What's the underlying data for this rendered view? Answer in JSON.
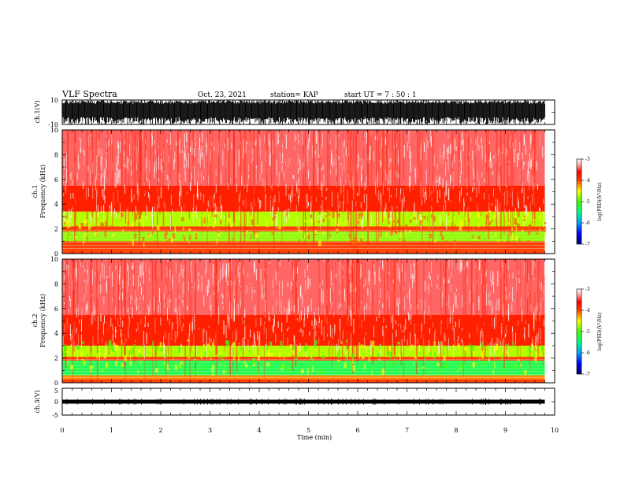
{
  "header": {
    "title": "VLF Spectra",
    "date": "Oct. 23, 2021",
    "station": "station= KAP",
    "start": "start  UT  =   7 : 50 : 1"
  },
  "chart_data": [
    {
      "type": "line",
      "panel": "ch1-waveform",
      "ylabel": "ch.1(V)",
      "ylim": [
        -10,
        10
      ],
      "y_ticks": [
        "10",
        "-10"
      ],
      "description_values": {
        "amplitude_range": [
          -10,
          10
        ]
      }
    },
    {
      "type": "heatmap",
      "panel": "ch1-spectrogram",
      "ylabel_line1": "ch.1",
      "ylabel_line2": "Frequency  (kHz)",
      "ylim": [
        0,
        10
      ],
      "y_ticks": [
        "0",
        "2",
        "4",
        "6",
        "8",
        "10"
      ],
      "bands_khz": [
        {
          "from": 0.0,
          "to": 0.3,
          "level": -4.0
        },
        {
          "from": 0.3,
          "to": 1.0,
          "level": -4.0
        },
        {
          "from": 1.0,
          "to": 1.8,
          "level": -4.8
        },
        {
          "from": 1.8,
          "to": 2.2,
          "level": -4.0
        },
        {
          "from": 2.2,
          "to": 3.4,
          "level": -4.7
        },
        {
          "from": 3.4,
          "to": 5.5,
          "level": -3.8
        },
        {
          "from": 5.5,
          "to": 10.0,
          "level": -3.4
        }
      ]
    },
    {
      "type": "heatmap",
      "panel": "ch2-spectrogram",
      "ylabel_line1": "ch.2",
      "ylabel_line2": "Frequency  (kHz)",
      "ylim": [
        0,
        10
      ],
      "y_ticks": [
        "0",
        "2",
        "4",
        "6",
        "8",
        "10"
      ],
      "bands_khz": [
        {
          "from": 0.0,
          "to": 0.3,
          "level": -4.0
        },
        {
          "from": 0.3,
          "to": 0.6,
          "level": -4.2
        },
        {
          "from": 0.6,
          "to": 1.8,
          "level": -5.3
        },
        {
          "from": 1.8,
          "to": 2.1,
          "level": -4.0
        },
        {
          "from": 2.1,
          "to": 3.0,
          "level": -4.7
        },
        {
          "from": 3.0,
          "to": 5.5,
          "level": -3.8
        },
        {
          "from": 5.5,
          "to": 10.0,
          "level": -3.4
        }
      ]
    },
    {
      "type": "line",
      "panel": "ch3-waveform",
      "ylabel": "ch.3(V)",
      "ylim": [
        -5,
        5
      ],
      "y_ticks": [
        "5",
        "0",
        "-5"
      ],
      "baseline_v": 0
    }
  ],
  "x_axis": {
    "xlabel": "Time  (min)",
    "xlim": [
      0,
      10
    ],
    "ticks": [
      "0",
      "1",
      "2",
      "3",
      "4",
      "5",
      "6",
      "7",
      "8",
      "9",
      "10"
    ],
    "data_end_min": 9.8
  },
  "colorbar": {
    "label": "log(PSD)(V²/Hz)",
    "range": [
      -7,
      -3
    ],
    "ticks": [
      "-3",
      "-4",
      "-5",
      "-6",
      "-7"
    ],
    "stops": [
      {
        "v": -7.0,
        "color": "#000066"
      },
      {
        "v": -6.5,
        "color": "#0000ff"
      },
      {
        "v": -6.0,
        "color": "#00a0ff"
      },
      {
        "v": -5.5,
        "color": "#00ff80"
      },
      {
        "v": -5.0,
        "color": "#40ff00"
      },
      {
        "v": -4.5,
        "color": "#ffff00"
      },
      {
        "v": -4.0,
        "color": "#ff4000"
      },
      {
        "v": -3.6,
        "color": "#ff0000"
      },
      {
        "v": -3.3,
        "color": "#ff9999"
      },
      {
        "v": -3.0,
        "color": "#ffffff"
      }
    ]
  }
}
